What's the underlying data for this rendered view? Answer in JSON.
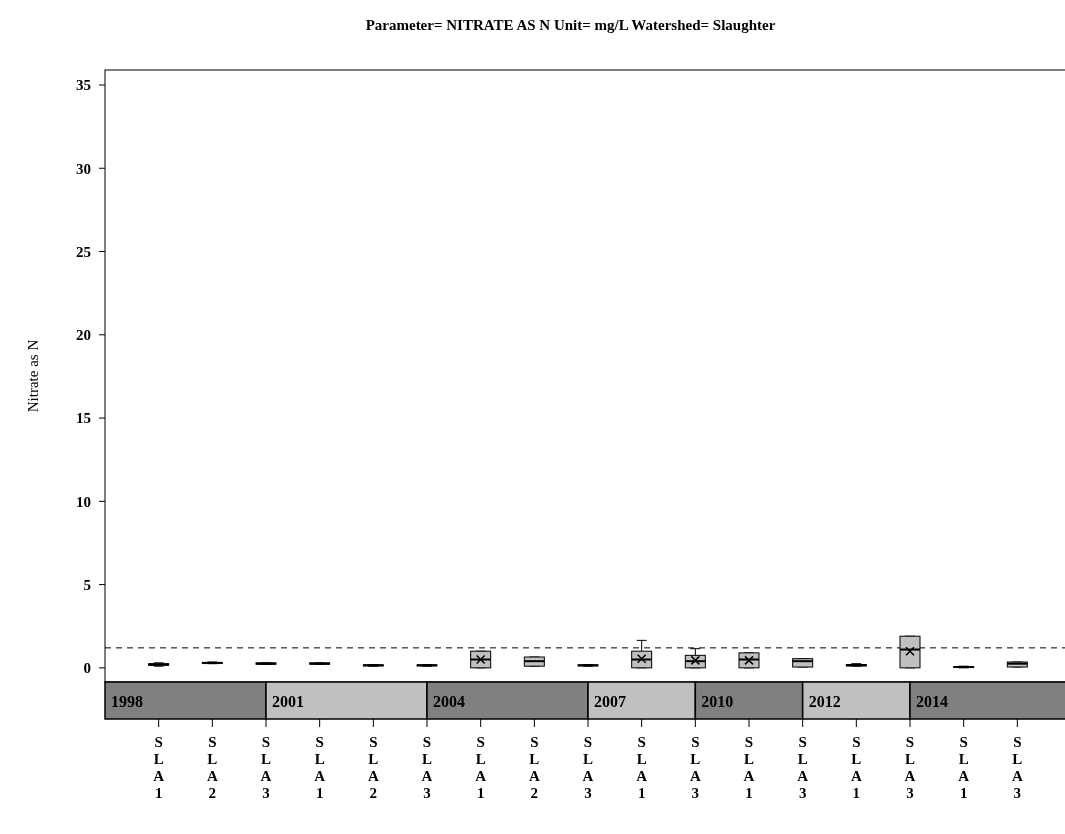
{
  "chart_data": {
    "type": "box",
    "title": "Parameter= NITRATE AS N  Unit= mg/L  Watershed= Slaughter",
    "ylabel": "Nitrate as N",
    "categories": [
      "SLA1",
      "SLA2",
      "SLA3",
      "SLA1",
      "SLA2",
      "SLA3",
      "SLA1",
      "SLA2",
      "SLA3",
      "SLA1",
      "SLA3",
      "SLA1",
      "SLA3",
      "SLA1",
      "SLA3",
      "SLA1",
      "SLA3"
    ],
    "ylim": [
      -0.85,
      35.9
    ],
    "yticks": [
      0,
      5,
      10,
      15,
      20,
      25,
      30,
      35
    ],
    "grid": false,
    "series": [
      {
        "color": "#c0c0c0",
        "boxes": [
          {
            "low": 0.1,
            "q1": 0.15,
            "median": 0.2,
            "q3": 0.25,
            "high": 0.3
          },
          {
            "low": 0.25,
            "q1": 0.28,
            "median": 0.3,
            "q3": 0.32,
            "high": 0.35
          },
          {
            "low": 0.2,
            "q1": 0.22,
            "median": 0.25,
            "q3": 0.3,
            "high": 0.3
          },
          {
            "low": 0.2,
            "q1": 0.22,
            "median": 0.25,
            "q3": 0.3,
            "high": 0.3
          },
          {
            "low": 0.1,
            "q1": 0.12,
            "median": 0.15,
            "q3": 0.18,
            "high": 0.2
          },
          {
            "low": 0.1,
            "q1": 0.12,
            "median": 0.15,
            "q3": 0.18,
            "high": 0.2
          },
          {
            "low": 0,
            "q1": 0,
            "median": 0.5,
            "q3": 1.0,
            "high": 1.0,
            "mean": 0.5
          },
          {
            "low": 0.1,
            "q1": 0.1,
            "median": 0.4,
            "q3": 0.65,
            "high": 0.65
          },
          {
            "low": 0.1,
            "q1": 0.12,
            "median": 0.15,
            "q3": 0.18,
            "high": 0.2
          },
          {
            "low": 0,
            "q1": 0,
            "median": 0.5,
            "q3": 1.0,
            "high": 1.65,
            "mean": 0.55
          },
          {
            "low": 0,
            "q1": 0,
            "median": 0.4,
            "q3": 0.75,
            "high": 1.15,
            "mean": 0.45
          },
          {
            "low": 0,
            "q1": 0,
            "median": 0.5,
            "q3": 0.9,
            "high": 0.9,
            "mean": 0.45
          },
          {
            "low": 0.05,
            "q1": 0.05,
            "median": 0.4,
            "q3": 0.55,
            "high": 0.55
          },
          {
            "low": 0.1,
            "q1": 0.12,
            "median": 0.15,
            "q3": 0.2,
            "high": 0.25
          },
          {
            "low": 0,
            "q1": 0,
            "median": 1.1,
            "q3": 1.9,
            "high": 1.9,
            "mean": 1.0
          },
          {
            "low": 0,
            "q1": 0.02,
            "median": 0.05,
            "q3": 0.08,
            "high": 0.1
          },
          {
            "low": 0.05,
            "q1": 0.05,
            "median": 0.25,
            "q3": 0.35,
            "high": 0.35
          }
        ]
      }
    ],
    "ref_lines": [
      {
        "axis": "y",
        "value": 1.2,
        "line_style": "dashed"
      }
    ],
    "annotations": [
      "1998",
      "2001",
      "2004",
      "2007",
      "2010",
      "2012",
      "2014"
    ]
  }
}
